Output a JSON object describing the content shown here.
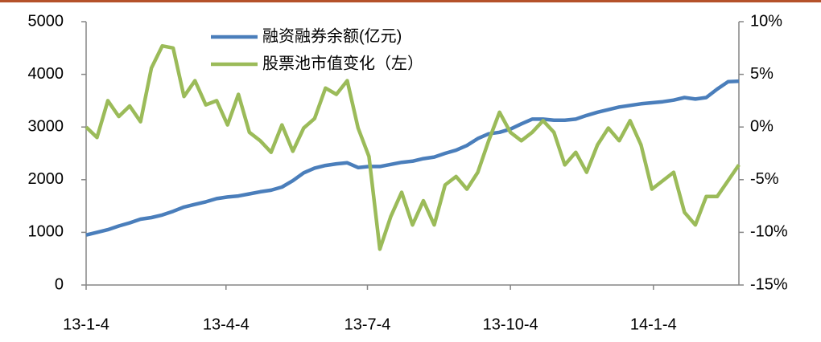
{
  "chart_data": {
    "type": "line",
    "x": [
      "13-1-4",
      "13-1-11",
      "13-1-18",
      "13-1-25",
      "13-2-1",
      "13-2-8",
      "13-2-15",
      "13-2-22",
      "13-3-1",
      "13-3-8",
      "13-3-15",
      "13-3-22",
      "13-3-29",
      "13-4-5",
      "13-4-12",
      "13-4-19",
      "13-4-26",
      "13-5-3",
      "13-5-10",
      "13-5-17",
      "13-5-24",
      "13-5-31",
      "13-6-7",
      "13-6-14",
      "13-6-21",
      "13-6-28",
      "13-7-5",
      "13-7-12",
      "13-7-19",
      "13-7-26",
      "13-8-2",
      "13-8-9",
      "13-8-16",
      "13-8-23",
      "13-8-30",
      "13-9-6",
      "13-9-13",
      "13-9-20",
      "13-9-27",
      "13-10-4",
      "13-10-11",
      "13-10-18",
      "13-10-25",
      "13-11-1",
      "13-11-8",
      "13-11-15",
      "13-11-22",
      "13-11-29",
      "13-12-6",
      "13-12-13",
      "13-12-20",
      "13-12-27",
      "14-1-3",
      "14-1-10",
      "14-1-17",
      "14-1-24",
      "14-1-31",
      "14-2-7",
      "14-2-14",
      "14-2-21",
      "14-2-28"
    ],
    "series": [
      {
        "name": "融资融券余额(亿元)",
        "color": "#4a7ebb",
        "values": [
          950,
          1000,
          1050,
          1120,
          1180,
          1250,
          1280,
          1330,
          1400,
          1480,
          1530,
          1580,
          1640,
          1670,
          1690,
          1730,
          1770,
          1800,
          1860,
          1980,
          2130,
          2220,
          2270,
          2300,
          2320,
          2230,
          2250,
          2250,
          2290,
          2330,
          2350,
          2400,
          2430,
          2500,
          2560,
          2650,
          2780,
          2870,
          2900,
          2960,
          3060,
          3150,
          3150,
          3130,
          3130,
          3150,
          3220,
          3280,
          3330,
          3380,
          3410,
          3440,
          3460,
          3480,
          3510,
          3560,
          3530,
          3560,
          3720,
          3860,
          3870
        ]
      },
      {
        "name": "股票池市值变化（左）",
        "color": "#9bbb59",
        "axis": "y2",
        "values": [
          0,
          -1,
          2.5,
          1,
          2,
          0.5,
          5.6,
          7.7,
          7.5,
          2.9,
          4.4,
          2.1,
          2.5,
          0.2,
          3.1,
          -0.5,
          -1.3,
          -2.4,
          0.2,
          -2.3,
          -0.1,
          0.8,
          3.7,
          3.1,
          4.4,
          -0.1,
          -2.8,
          -11.6,
          -8.5,
          -6.2,
          -9.3,
          -7,
          -9.3,
          -5.5,
          -4.7,
          -5.9,
          -4.3,
          -1.3,
          1.4,
          -0.5,
          -1.3,
          -0.5,
          0.6,
          -0.5,
          -3.6,
          -2.4,
          -4.3,
          -1.7,
          -0.1,
          -1.3,
          0.6,
          -1.7,
          -5.9,
          -5.1,
          -4.3,
          -8.1,
          -9.3,
          -6.6,
          -6.6,
          -5.1,
          -3.6
        ]
      }
    ],
    "xlim": [
      "13-1-4",
      "14-2-28"
    ],
    "xticks": [
      "13-1-4",
      "13-4-4",
      "13-7-4",
      "13-10-4",
      "14-1-4"
    ],
    "ylim": [
      0,
      5000
    ],
    "yticks": [
      0,
      1000,
      2000,
      3000,
      4000,
      5000
    ],
    "y2lim": [
      -15,
      10
    ],
    "y2ticks": [
      {
        "value": -15,
        "label": "-15%"
      },
      {
        "value": -10,
        "label": "-10%"
      },
      {
        "value": -5,
        "label": "-5%"
      },
      {
        "value": 0,
        "label": "0%"
      },
      {
        "value": 5,
        "label": "5%"
      },
      {
        "value": 10,
        "label": "10%"
      }
    ],
    "legend": "top"
  }
}
